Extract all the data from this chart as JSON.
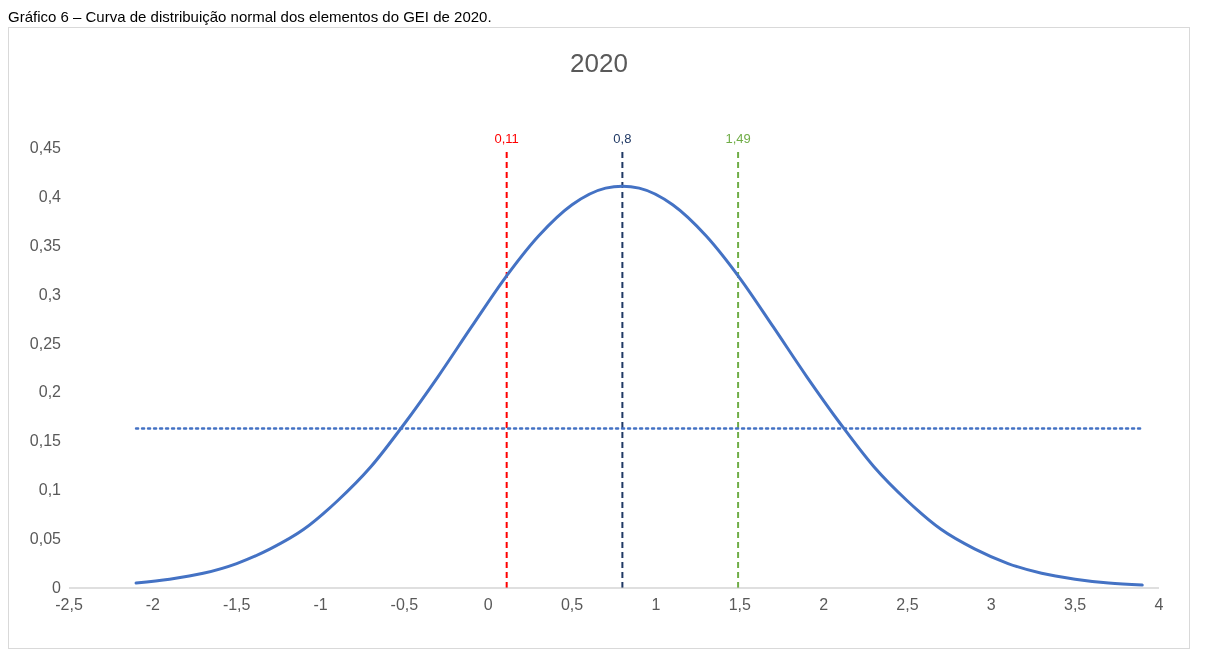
{
  "chart_data": {
    "type": "line",
    "title": "2020",
    "annotations": [
      "Gráfico 6 – Curva de distribuição normal dos elementos do GEI de 2020."
    ],
    "x": [
      -2.1,
      -1.9,
      -1.7,
      -1.5,
      -1.3,
      -1.1,
      -0.9,
      -0.7,
      -0.5,
      -0.3,
      -0.1,
      0.1,
      0.3,
      0.5,
      0.7,
      0.8,
      0.9,
      1.1,
      1.3,
      1.5,
      1.7,
      1.9,
      2.1,
      2.3,
      2.5,
      2.7,
      2.9,
      3.1,
      3.3,
      3.5,
      3.7,
      3.9
    ],
    "series": [
      {
        "color": "#4472c4",
        "values": [
          0.005,
          0.009,
          0.015,
          0.025,
          0.04,
          0.06,
          0.089,
          0.124,
          0.168,
          0.216,
          0.267,
          0.317,
          0.36,
          0.392,
          0.409,
          0.411,
          0.409,
          0.392,
          0.36,
          0.317,
          0.267,
          0.216,
          0.168,
          0.124,
          0.089,
          0.06,
          0.04,
          0.025,
          0.015,
          0.009,
          0.005,
          0.003
        ]
      },
      {
        "color": "#4472c4",
        "x": [
          -2.1,
          3.9
        ],
        "values": [
          0.163,
          0.163
        ],
        "line_style": "dotted"
      }
    ],
    "ref_lines": [
      {
        "axis": "x",
        "value": 0.11,
        "label": "0,11",
        "color": "#ff0000",
        "line_style": "dashed"
      },
      {
        "axis": "x",
        "value": 0.8,
        "label": "0,8",
        "color": "#1f3864",
        "line_style": "dashed"
      },
      {
        "axis": "x",
        "value": 1.49,
        "label": "1,49",
        "color": "#70ad47",
        "line_style": "dashed"
      }
    ],
    "xlim": [
      -2.5,
      4
    ],
    "xticks": [
      {
        "value": -2.5,
        "label": "-2,5"
      },
      -2,
      {
        "value": -1.5,
        "label": "-1,5"
      },
      -1,
      {
        "value": -0.5,
        "label": "-0,5"
      },
      0,
      {
        "value": 0.5,
        "label": "0,5"
      },
      1,
      {
        "value": 1.5,
        "label": "1,5"
      },
      2,
      {
        "value": 2.5,
        "label": "2,5"
      },
      3,
      {
        "value": 3.5,
        "label": "3,5"
      },
      4
    ],
    "ylim": [
      0,
      0.45
    ],
    "yticks": [
      0,
      {
        "value": 0.05,
        "label": "0,05"
      },
      {
        "value": 0.1,
        "label": "0,1"
      },
      {
        "value": 0.15,
        "label": "0,15"
      },
      {
        "value": 0.2,
        "label": "0,2"
      },
      {
        "value": 0.25,
        "label": "0,25"
      },
      {
        "value": 0.3,
        "label": "0,3"
      },
      {
        "value": 0.35,
        "label": "0,35"
      },
      {
        "value": 0.4,
        "label": "0,4"
      },
      {
        "value": 0.45,
        "label": "0,45"
      }
    ],
    "grid": false,
    "marker": "none",
    "line_style": "solid"
  }
}
